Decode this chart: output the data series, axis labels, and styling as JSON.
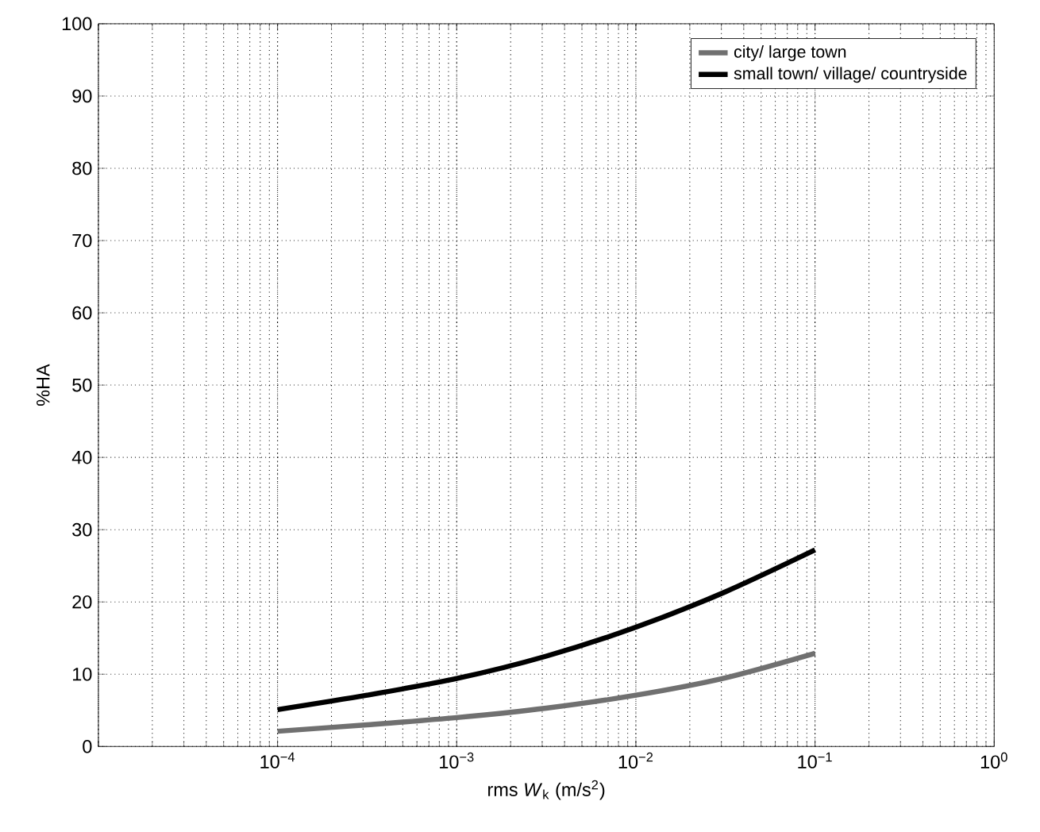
{
  "chart_data": {
    "type": "line",
    "xlabel": "rms *W*$_{k}$ (m/s$^{2}$)",
    "ylabel": "%HA",
    "log": "x",
    "xlim": [
      1e-05,
      1
    ],
    "xticks": [
      {
        "value": 1e-05,
        "label": null
      },
      {
        "value": 0.0001,
        "label": "10$^{−4}$"
      },
      {
        "value": 0.001,
        "label": "10$^{−3}$"
      },
      {
        "value": 0.01,
        "label": "10$^{−2}$"
      },
      {
        "value": 0.1,
        "label": "10$^{−1}$"
      },
      {
        "value": 1,
        "label": "10$^{0}$"
      }
    ],
    "ylim": [
      0,
      100
    ],
    "yticks": [
      0,
      10,
      20,
      30,
      40,
      50,
      60,
      70,
      80,
      90,
      100
    ],
    "grid": true,
    "legend": "top right",
    "x": [
      0.0001,
      0.000316,
      0.001,
      0.00316,
      0.01,
      0.0316,
      0.1
    ],
    "series": [
      {
        "name": "city/ large town",
        "color": "#707070",
        "values": [
          2.1,
          3.0,
          4.0,
          5.3,
          7.1,
          9.5,
          12.9
        ]
      },
      {
        "name": "small town/ village/ countryside",
        "color": "#000000",
        "values": [
          5.1,
          7.1,
          9.4,
          12.5,
          16.5,
          21.4,
          27.2
        ]
      }
    ]
  }
}
